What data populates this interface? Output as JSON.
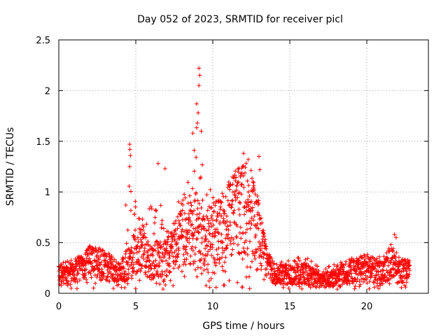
{
  "chart_data": {
    "type": "scatter",
    "title": "Day 052 of 2023, SRMTID for receiver picl",
    "xlabel": "GPS time / hours",
    "ylabel": "SRMTID / TECUs",
    "xlim": [
      0,
      24
    ],
    "ylim": [
      0,
      2.5
    ],
    "xticks": [
      "0",
      "5",
      "10",
      "15",
      "20"
    ],
    "xtick_values": [
      0,
      5,
      10,
      15,
      20
    ],
    "yticks": [
      "0",
      "0.5",
      "1",
      "1.5",
      "2",
      "2.5"
    ],
    "ytick_values": [
      0,
      0.5,
      1,
      1.5,
      2,
      2.5
    ],
    "grid": true,
    "marker": "+",
    "series_color": "#ff0000",
    "envelope": {
      "description": "approximate typical SRMTID level (TECU) per hour across the day",
      "hours": [
        0,
        1,
        2,
        3,
        4,
        4.5,
        5,
        5.5,
        6,
        6.5,
        7,
        7.5,
        8,
        8.5,
        9,
        9.5,
        10,
        10.5,
        11,
        11.5,
        12,
        12.5,
        13,
        13.5,
        14,
        15,
        16,
        17,
        18,
        19,
        20,
        21,
        21.5,
        22,
        22.8
      ],
      "typical": [
        0.18,
        0.22,
        0.3,
        0.27,
        0.2,
        0.3,
        0.45,
        0.4,
        0.3,
        0.35,
        0.35,
        0.45,
        0.55,
        0.6,
        0.65,
        0.5,
        0.6,
        0.6,
        0.7,
        0.8,
        0.85,
        0.8,
        0.6,
        0.3,
        0.2,
        0.18,
        0.2,
        0.12,
        0.15,
        0.22,
        0.25,
        0.2,
        0.3,
        0.22,
        0.22
      ],
      "peak": [
        0.42,
        0.35,
        0.55,
        0.5,
        0.3,
        1.47,
        1.15,
        0.9,
        1.28,
        1.28,
        0.9,
        1.0,
        1.2,
        1.6,
        2.22,
        1.3,
        1.2,
        1.25,
        1.3,
        1.35,
        1.38,
        1.3,
        1.38,
        0.45,
        0.4,
        0.4,
        0.45,
        0.3,
        0.35,
        0.4,
        0.35,
        0.45,
        0.58,
        0.5,
        0.33
      ]
    },
    "notable_points": [
      {
        "x": 9.1,
        "y": 2.22
      },
      {
        "x": 9.15,
        "y": 2.15
      },
      {
        "x": 9.1,
        "y": 2.05
      },
      {
        "x": 8.95,
        "y": 1.87
      },
      {
        "x": 9.05,
        "y": 1.78
      },
      {
        "x": 9.0,
        "y": 1.68
      },
      {
        "x": 9.25,
        "y": 1.6
      },
      {
        "x": 8.7,
        "y": 1.58
      },
      {
        "x": 4.6,
        "y": 1.47
      },
      {
        "x": 4.62,
        "y": 1.42
      },
      {
        "x": 4.65,
        "y": 1.36
      },
      {
        "x": 4.6,
        "y": 1.25
      },
      {
        "x": 6.45,
        "y": 1.28
      },
      {
        "x": 6.9,
        "y": 1.23
      },
      {
        "x": 12.0,
        "y": 1.38
      },
      {
        "x": 12.3,
        "y": 1.32
      },
      {
        "x": 13.0,
        "y": 1.35
      },
      {
        "x": 13.05,
        "y": 1.22
      },
      {
        "x": 21.8,
        "y": 0.58
      },
      {
        "x": 21.9,
        "y": 0.55
      },
      {
        "x": 10.7,
        "y": 0.08
      },
      {
        "x": 11.9,
        "y": 0.06
      },
      {
        "x": 0.8,
        "y": 0.05
      },
      {
        "x": 16.2,
        "y": 0.08
      }
    ]
  }
}
